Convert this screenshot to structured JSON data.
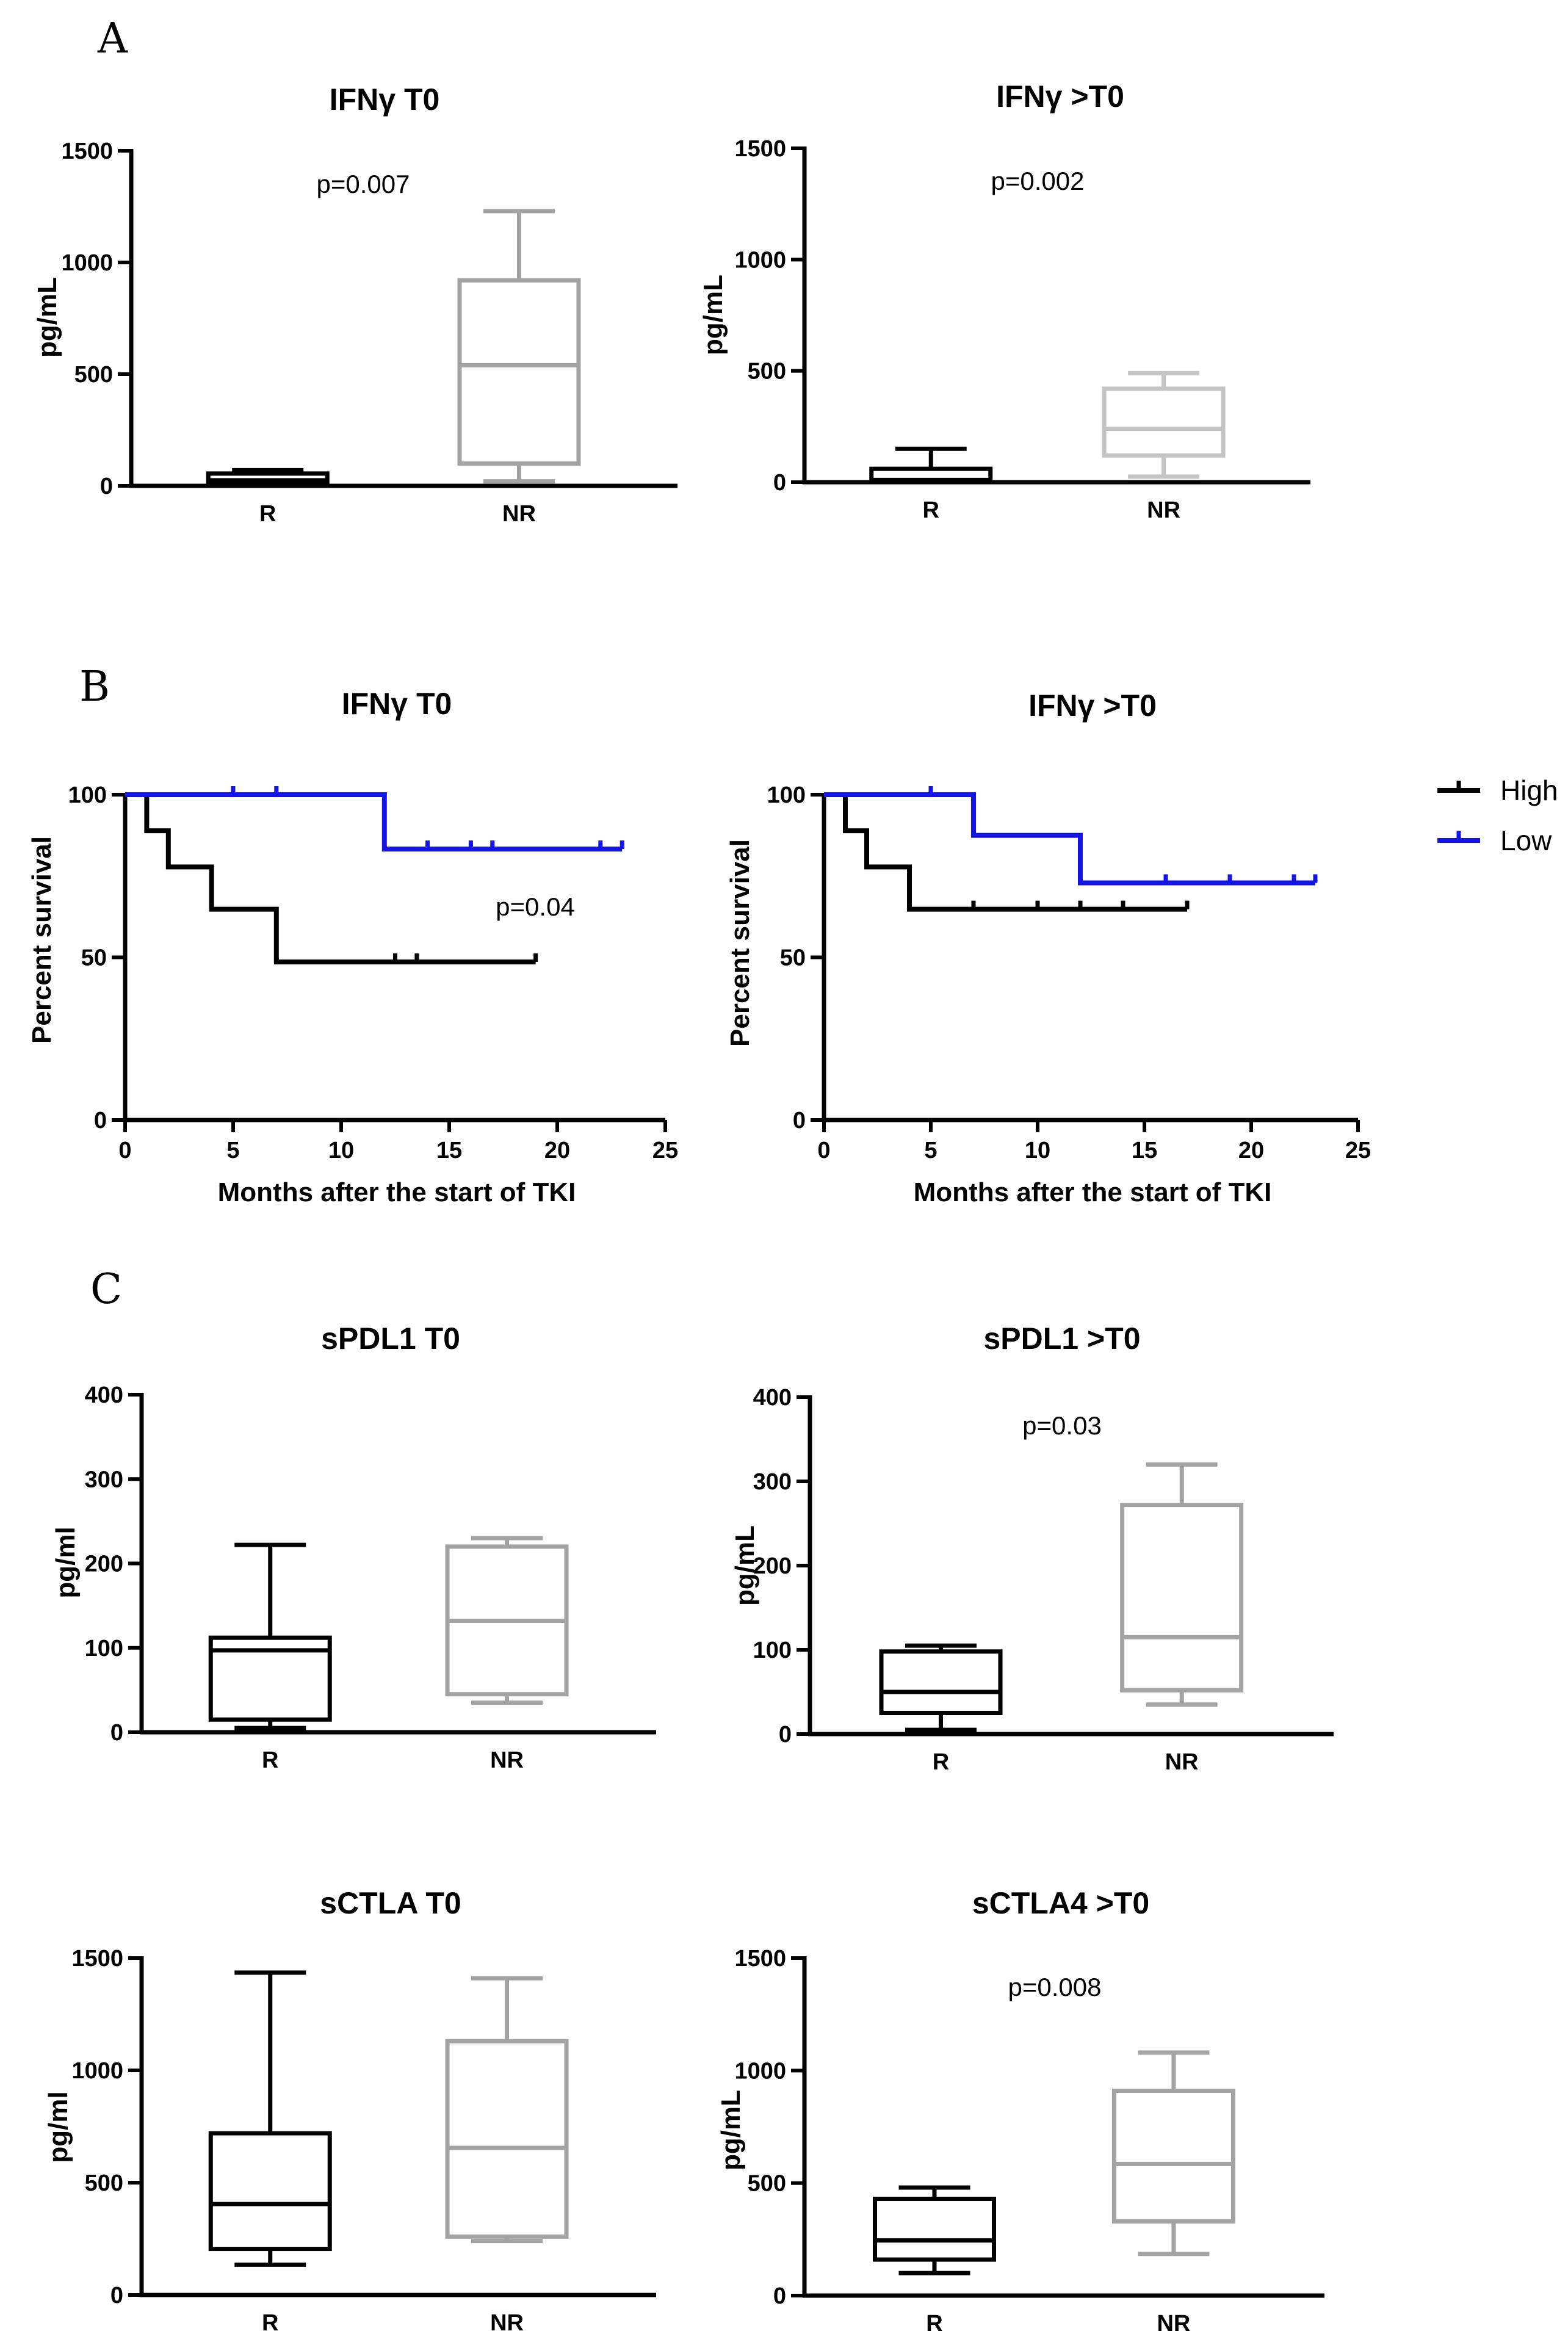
{
  "panels": {
    "A": "A",
    "B": "B",
    "C": "C"
  },
  "colors": {
    "black": "#000000",
    "gray": "#a3a3a3",
    "lightgray": "#c4c4c4",
    "blue": "#1414e6"
  },
  "chart_data": [
    {
      "id": "ifng-t0-box",
      "type": "box",
      "title": "IFNγ T0",
      "ylabel": "pg/mL",
      "ylim": [
        0,
        1500
      ],
      "yticks": [
        0,
        500,
        1000,
        1500
      ],
      "annotation": "p=0.007",
      "groups": [
        {
          "name": "R",
          "color": "black",
          "min": 5,
          "q1": 15,
          "median": 25,
          "q3": 55,
          "max": 70
        },
        {
          "name": "NR",
          "color": "gray",
          "min": 20,
          "q1": 100,
          "median": 540,
          "q3": 920,
          "max": 1230
        }
      ]
    },
    {
      "id": "ifng-gt0-box",
      "type": "box",
      "title": "IFNγ >T0",
      "ylabel": "pg/mL",
      "ylim": [
        0,
        1500
      ],
      "yticks": [
        0,
        500,
        1000,
        1500
      ],
      "annotation": "p=0.002",
      "groups": [
        {
          "name": "R",
          "color": "black",
          "min": 0,
          "q1": 5,
          "median": 10,
          "q3": 60,
          "max": 150
        },
        {
          "name": "NR",
          "color": "lightgray",
          "min": 25,
          "q1": 120,
          "median": 240,
          "q3": 420,
          "max": 490
        }
      ]
    },
    {
      "id": "ifng-t0-km",
      "type": "survival",
      "title": "IFNγ T0",
      "xlabel": "Months after the start of TKI",
      "ylabel": "Percent survival",
      "xlim": [
        0,
        25
      ],
      "xticks": [
        0,
        5,
        10,
        15,
        20,
        25
      ],
      "ylim": [
        0,
        100
      ],
      "yticks": [
        0,
        50,
        100
      ],
      "annotation": "p=0.04",
      "series": [
        {
          "name": "High",
          "color": "black",
          "steps": [
            [
              0,
              100
            ],
            [
              1,
              88.9
            ],
            [
              2,
              77.8
            ],
            [
              4,
              64.8
            ],
            [
              7,
              48.6
            ],
            [
              19,
              48.6
            ]
          ],
          "censors": [
            [
              12.5,
              48.6
            ],
            [
              13.5,
              48.6
            ],
            [
              19,
              48.6
            ]
          ]
        },
        {
          "name": "Low",
          "color": "blue",
          "steps": [
            [
              0,
              100
            ],
            [
              12,
              83.3
            ],
            [
              23,
              83.3
            ]
          ],
          "censors": [
            [
              5,
              100
            ],
            [
              7,
              100
            ],
            [
              14,
              83.3
            ],
            [
              16,
              83.3
            ],
            [
              17,
              83.3
            ],
            [
              22,
              83.3
            ],
            [
              23,
              83.3
            ]
          ]
        }
      ]
    },
    {
      "id": "ifng-gt0-km",
      "type": "survival",
      "title": "IFNγ >T0",
      "xlabel": "Months after the start of TKI",
      "ylabel": "Percent survival",
      "xlim": [
        0,
        25
      ],
      "xticks": [
        0,
        5,
        10,
        15,
        20,
        25
      ],
      "ylim": [
        0,
        100
      ],
      "yticks": [
        0,
        50,
        100
      ],
      "annotation": "",
      "series": [
        {
          "name": "High",
          "color": "black",
          "steps": [
            [
              0,
              100
            ],
            [
              1,
              88.9
            ],
            [
              2,
              77.8
            ],
            [
              4,
              64.8
            ],
            [
              17,
              64.8
            ]
          ],
          "censors": [
            [
              7,
              64.8
            ],
            [
              10,
              64.8
            ],
            [
              12,
              64.8
            ],
            [
              14,
              64.8
            ],
            [
              17,
              64.8
            ]
          ]
        },
        {
          "name": "Low",
          "color": "blue",
          "steps": [
            [
              0,
              100
            ],
            [
              7,
              87.5
            ],
            [
              12,
              72.9
            ],
            [
              23,
              72.9
            ]
          ],
          "censors": [
            [
              5,
              100
            ],
            [
              16,
              72.9
            ],
            [
              19,
              72.9
            ],
            [
              22,
              72.9
            ],
            [
              23,
              72.9
            ]
          ]
        }
      ]
    },
    {
      "id": "spdl1-t0-box",
      "type": "box",
      "title": "sPDL1 T0",
      "ylabel": "pg/ml",
      "ylim": [
        0,
        400
      ],
      "yticks": [
        0,
        100,
        200,
        300,
        400
      ],
      "annotation": "",
      "groups": [
        {
          "name": "R",
          "color": "black",
          "min": 5,
          "q1": 15,
          "median": 97,
          "q3": 112,
          "max": 222
        },
        {
          "name": "NR",
          "color": "gray",
          "min": 35,
          "q1": 45,
          "median": 132,
          "q3": 220,
          "max": 230
        }
      ]
    },
    {
      "id": "spdl1-gt0-box",
      "type": "box",
      "title": "sPDL1 >T0",
      "ylabel": "pg/mL",
      "ylim": [
        0,
        400
      ],
      "yticks": [
        0,
        100,
        200,
        300,
        400
      ],
      "annotation": "p=0.03",
      "groups": [
        {
          "name": "R",
          "color": "black",
          "min": 5,
          "q1": 25,
          "median": 50,
          "q3": 98,
          "max": 105
        },
        {
          "name": "NR",
          "color": "gray",
          "min": 35,
          "q1": 52,
          "median": 115,
          "q3": 272,
          "max": 320
        }
      ]
    },
    {
      "id": "sctla-t0-box",
      "type": "box",
      "title": "sCTLA T0",
      "ylabel": "pg/ml",
      "ylim": [
        0,
        1500
      ],
      "yticks": [
        0,
        500,
        1000,
        1500
      ],
      "annotation": "",
      "groups": [
        {
          "name": "R",
          "color": "black",
          "min": 135,
          "q1": 205,
          "median": 405,
          "q3": 720,
          "max": 1435
        },
        {
          "name": "NR",
          "color": "gray",
          "min": 240,
          "q1": 260,
          "median": 655,
          "q3": 1130,
          "max": 1410
        }
      ]
    },
    {
      "id": "sctla4-gt0-box",
      "type": "box",
      "title": "sCTLA4 >T0",
      "ylabel": "pg/mL",
      "ylim": [
        0,
        1500
      ],
      "yticks": [
        0,
        500,
        1000,
        1500
      ],
      "annotation": "p=0.008",
      "groups": [
        {
          "name": "R",
          "color": "black",
          "min": 100,
          "q1": 160,
          "median": 245,
          "q3": 430,
          "max": 480
        },
        {
          "name": "NR",
          "color": "gray",
          "min": 185,
          "q1": 330,
          "median": 585,
          "q3": 910,
          "max": 1080
        }
      ]
    }
  ]
}
